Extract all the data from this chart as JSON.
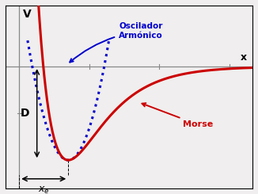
{
  "xlabel": "x",
  "ylabel": "V",
  "D": 1.0,
  "morse_color": "#cc0000",
  "ho_color": "#0000cc",
  "morse_linewidth": 2.2,
  "ho_linewidth": 2.2,
  "morse_label": "Morse",
  "ho_label": "Oscilador\nArmónico",
  "D_label": "D",
  "xe_label": "x",
  "xlim": [
    -0.3,
    5.0
  ],
  "ylim": [
    -1.3,
    0.65
  ],
  "alpha_morse": 1.3,
  "x_eq": 1.05,
  "background_color": "#f0eeee",
  "axis_color": "#888888"
}
